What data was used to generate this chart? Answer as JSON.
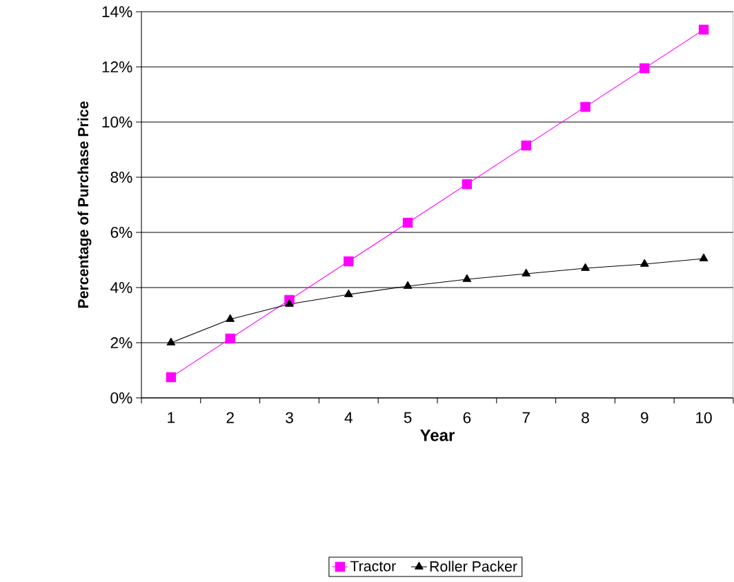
{
  "chart_data": {
    "type": "line",
    "xlabel": "Year",
    "ylabel": "Percentage of Purchase Price",
    "categories": [
      "1",
      "2",
      "3",
      "4",
      "5",
      "6",
      "7",
      "8",
      "9",
      "10"
    ],
    "series": [
      {
        "name": "Tractor",
        "color": "#ff00ff",
        "marker": "square",
        "values": [
          0.75,
          2.15,
          3.55,
          4.95,
          6.35,
          7.75,
          9.15,
          10.55,
          11.95,
          13.35
        ]
      },
      {
        "name": "Roller Packer",
        "color": "#000000",
        "marker": "triangle",
        "values": [
          2.0,
          2.85,
          3.4,
          3.75,
          4.05,
          4.3,
          4.5,
          4.7,
          4.85,
          5.05
        ]
      }
    ],
    "ylim": [
      0,
      14
    ],
    "yticks": [
      {
        "value": 0,
        "label": "0%"
      },
      {
        "value": 2,
        "label": "2%"
      },
      {
        "value": 4,
        "label": "4%"
      },
      {
        "value": 6,
        "label": "6%"
      },
      {
        "value": 8,
        "label": "8%"
      },
      {
        "value": 10,
        "label": "10%"
      },
      {
        "value": 12,
        "label": "12%"
      },
      {
        "value": 14,
        "label": "14%"
      }
    ],
    "grid": "y",
    "legend": "bottom",
    "line_style": "solid"
  }
}
